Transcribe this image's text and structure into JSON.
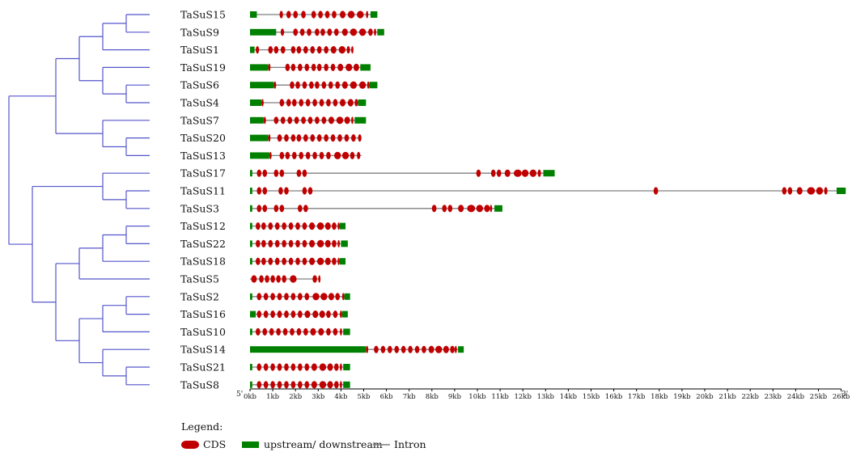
{
  "axis": {
    "start_label": "5'",
    "end_label": "3'",
    "ticks": [
      "0kb",
      "1kb",
      "2kb",
      "3kb",
      "4kb",
      "5kb",
      "6kb",
      "7kb",
      "8kb",
      "9kb",
      "10kb",
      "11kb",
      "12kb",
      "13kb",
      "14kb",
      "15kb",
      "16kb",
      "17kb",
      "18kb",
      "19kb",
      "20kb",
      "21kb",
      "22kb",
      "23kb",
      "24kb",
      "25kb",
      "26kb"
    ]
  },
  "legend": {
    "title": "Legend:",
    "cds_label": "CDS",
    "utr_label": "upstream/ downstream",
    "intron_label": "Intron"
  },
  "colors": {
    "cds": "#c00000",
    "utr": "#008000",
    "intron": "#7f7f7f",
    "tree": "#5555cc"
  },
  "genes": [
    {
      "name": "TaSuS15",
      "len": 5.6,
      "utr": [
        [
          0,
          0.3
        ],
        [
          5.3,
          5.6
        ]
      ],
      "cds": [
        [
          1.3,
          0.15
        ],
        [
          1.6,
          0.2
        ],
        [
          1.9,
          0.2
        ],
        [
          2.25,
          0.2
        ],
        [
          2.7,
          0.2
        ],
        [
          3.0,
          0.2
        ],
        [
          3.3,
          0.2
        ],
        [
          3.6,
          0.2
        ],
        [
          3.95,
          0.25
        ],
        [
          4.3,
          0.3
        ],
        [
          4.7,
          0.3
        ],
        [
          5.1,
          0.1
        ]
      ]
    },
    {
      "name": "TaSuS9",
      "len": 5.9,
      "utr": [
        [
          0,
          1.15
        ],
        [
          5.6,
          5.9
        ]
      ],
      "cds": [
        [
          1.35,
          0.15
        ],
        [
          1.9,
          0.2
        ],
        [
          2.2,
          0.2
        ],
        [
          2.5,
          0.2
        ],
        [
          2.85,
          0.2
        ],
        [
          3.1,
          0.2
        ],
        [
          3.4,
          0.2
        ],
        [
          3.7,
          0.2
        ],
        [
          4.05,
          0.25
        ],
        [
          4.4,
          0.3
        ],
        [
          4.8,
          0.3
        ],
        [
          5.2,
          0.2
        ],
        [
          5.45,
          0.1
        ]
      ]
    },
    {
      "name": "TaSuS1",
      "len": 4.5,
      "utr": [
        [
          0,
          0.2
        ]
      ],
      "cds": [
        [
          0.25,
          0.15
        ],
        [
          0.8,
          0.2
        ],
        [
          1.05,
          0.2
        ],
        [
          1.35,
          0.2
        ],
        [
          1.8,
          0.2
        ],
        [
          2.05,
          0.2
        ],
        [
          2.35,
          0.2
        ],
        [
          2.65,
          0.2
        ],
        [
          2.95,
          0.2
        ],
        [
          3.25,
          0.2
        ],
        [
          3.55,
          0.25
        ],
        [
          3.9,
          0.3
        ],
        [
          4.25,
          0.15
        ],
        [
          4.45,
          0.1
        ]
      ]
    },
    {
      "name": "TaSuS19",
      "len": 5.3,
      "utr": [
        [
          0,
          0.8
        ],
        [
          4.85,
          5.3
        ]
      ],
      "cds": [
        [
          0.8,
          0.1
        ],
        [
          1.55,
          0.2
        ],
        [
          1.8,
          0.2
        ],
        [
          2.1,
          0.2
        ],
        [
          2.4,
          0.2
        ],
        [
          2.7,
          0.2
        ],
        [
          2.95,
          0.2
        ],
        [
          3.25,
          0.2
        ],
        [
          3.55,
          0.2
        ],
        [
          3.85,
          0.25
        ],
        [
          4.2,
          0.3
        ],
        [
          4.55,
          0.25
        ]
      ]
    },
    {
      "name": "TaSuS6",
      "len": 5.6,
      "utr": [
        [
          0,
          1.05
        ],
        [
          5.25,
          5.6
        ]
      ],
      "cds": [
        [
          1.05,
          0.1
        ],
        [
          1.75,
          0.2
        ],
        [
          2.0,
          0.2
        ],
        [
          2.3,
          0.2
        ],
        [
          2.6,
          0.2
        ],
        [
          2.85,
          0.2
        ],
        [
          3.15,
          0.2
        ],
        [
          3.45,
          0.2
        ],
        [
          3.75,
          0.2
        ],
        [
          4.05,
          0.25
        ],
        [
          4.4,
          0.3
        ],
        [
          4.8,
          0.3
        ],
        [
          5.15,
          0.1
        ]
      ]
    },
    {
      "name": "TaSuS4",
      "len": 5.1,
      "utr": [
        [
          0,
          0.5
        ],
        [
          4.75,
          5.1
        ]
      ],
      "cds": [
        [
          0.5,
          0.1
        ],
        [
          1.3,
          0.2
        ],
        [
          1.6,
          0.2
        ],
        [
          1.85,
          0.2
        ],
        [
          2.15,
          0.2
        ],
        [
          2.45,
          0.2
        ],
        [
          2.75,
          0.2
        ],
        [
          3.05,
          0.2
        ],
        [
          3.35,
          0.2
        ],
        [
          3.65,
          0.2
        ],
        [
          3.95,
          0.25
        ],
        [
          4.3,
          0.25
        ],
        [
          4.6,
          0.15
        ]
      ]
    },
    {
      "name": "TaSuS7",
      "len": 5.1,
      "utr": [
        [
          0,
          0.6
        ],
        [
          4.6,
          5.1
        ]
      ],
      "cds": [
        [
          0.6,
          0.1
        ],
        [
          1.05,
          0.2
        ],
        [
          1.35,
          0.2
        ],
        [
          1.65,
          0.2
        ],
        [
          1.95,
          0.2
        ],
        [
          2.25,
          0.2
        ],
        [
          2.55,
          0.2
        ],
        [
          2.85,
          0.2
        ],
        [
          3.15,
          0.2
        ],
        [
          3.45,
          0.25
        ],
        [
          3.8,
          0.3
        ],
        [
          4.15,
          0.25
        ],
        [
          4.45,
          0.1
        ]
      ]
    },
    {
      "name": "TaSuS20",
      "len": 4.9,
      "utr": [
        [
          0,
          0.8
        ]
      ],
      "cds": [
        [
          0.8,
          0.1
        ],
        [
          1.2,
          0.2
        ],
        [
          1.5,
          0.2
        ],
        [
          1.8,
          0.2
        ],
        [
          2.05,
          0.2
        ],
        [
          2.35,
          0.2
        ],
        [
          2.65,
          0.2
        ],
        [
          2.95,
          0.2
        ],
        [
          3.25,
          0.2
        ],
        [
          3.55,
          0.2
        ],
        [
          3.85,
          0.2
        ],
        [
          4.15,
          0.2
        ],
        [
          4.45,
          0.2
        ],
        [
          4.75,
          0.15
        ]
      ]
    },
    {
      "name": "TaSuS13",
      "len": 4.9,
      "utr": [
        [
          0,
          0.85
        ]
      ],
      "cds": [
        [
          0.85,
          0.1
        ],
        [
          1.3,
          0.2
        ],
        [
          1.55,
          0.2
        ],
        [
          1.85,
          0.2
        ],
        [
          2.15,
          0.2
        ],
        [
          2.45,
          0.2
        ],
        [
          2.75,
          0.2
        ],
        [
          3.05,
          0.2
        ],
        [
          3.35,
          0.2
        ],
        [
          3.7,
          0.3
        ],
        [
          4.05,
          0.3
        ],
        [
          4.4,
          0.2
        ],
        [
          4.7,
          0.15
        ]
      ]
    },
    {
      "name": "TaSuS17",
      "len": 13.4,
      "utr": [
        [
          0,
          0.1
        ],
        [
          12.9,
          13.4
        ]
      ],
      "cds": [
        [
          0.3,
          0.2
        ],
        [
          0.55,
          0.2
        ],
        [
          1.05,
          0.2
        ],
        [
          1.3,
          0.2
        ],
        [
          2.05,
          0.2
        ],
        [
          2.3,
          0.2
        ],
        [
          9.95,
          0.2
        ],
        [
          10.6,
          0.2
        ],
        [
          10.85,
          0.2
        ],
        [
          11.2,
          0.25
        ],
        [
          11.6,
          0.35
        ],
        [
          11.95,
          0.3
        ],
        [
          12.3,
          0.3
        ],
        [
          12.65,
          0.15
        ]
      ]
    },
    {
      "name": "TaSuS11",
      "len": 26.2,
      "utr": [
        [
          0,
          0.1
        ],
        [
          25.8,
          26.2
        ]
      ],
      "cds": [
        [
          0.3,
          0.2
        ],
        [
          0.55,
          0.2
        ],
        [
          1.25,
          0.2
        ],
        [
          1.5,
          0.2
        ],
        [
          2.3,
          0.2
        ],
        [
          2.55,
          0.2
        ],
        [
          17.75,
          0.2
        ],
        [
          23.4,
          0.2
        ],
        [
          23.65,
          0.2
        ],
        [
          24.05,
          0.25
        ],
        [
          24.5,
          0.35
        ],
        [
          24.9,
          0.3
        ],
        [
          25.25,
          0.15
        ]
      ]
    },
    {
      "name": "TaSuS3",
      "len": 11.1,
      "utr": [
        [
          0,
          0.1
        ],
        [
          10.75,
          11.1
        ]
      ],
      "cds": [
        [
          0.3,
          0.2
        ],
        [
          0.55,
          0.2
        ],
        [
          1.05,
          0.2
        ],
        [
          1.3,
          0.2
        ],
        [
          2.1,
          0.2
        ],
        [
          2.35,
          0.2
        ],
        [
          8.0,
          0.2
        ],
        [
          8.45,
          0.2
        ],
        [
          8.7,
          0.2
        ],
        [
          9.15,
          0.25
        ],
        [
          9.55,
          0.35
        ],
        [
          9.95,
          0.3
        ],
        [
          10.3,
          0.25
        ],
        [
          10.55,
          0.1
        ]
      ]
    },
    {
      "name": "TaSuS12",
      "len": 4.2,
      "utr": [
        [
          0,
          0.1
        ],
        [
          3.95,
          4.2
        ]
      ],
      "cds": [
        [
          0.25,
          0.2
        ],
        [
          0.5,
          0.2
        ],
        [
          0.8,
          0.2
        ],
        [
          1.1,
          0.2
        ],
        [
          1.4,
          0.2
        ],
        [
          1.7,
          0.2
        ],
        [
          2.0,
          0.2
        ],
        [
          2.3,
          0.2
        ],
        [
          2.6,
          0.25
        ],
        [
          2.95,
          0.3
        ],
        [
          3.3,
          0.25
        ],
        [
          3.6,
          0.2
        ],
        [
          3.85,
          0.1
        ]
      ]
    },
    {
      "name": "TaSuS22",
      "len": 4.3,
      "utr": [
        [
          0,
          0.1
        ],
        [
          4.0,
          4.3
        ]
      ],
      "cds": [
        [
          0.25,
          0.2
        ],
        [
          0.5,
          0.2
        ],
        [
          0.8,
          0.2
        ],
        [
          1.1,
          0.2
        ],
        [
          1.4,
          0.2
        ],
        [
          1.7,
          0.2
        ],
        [
          2.0,
          0.2
        ],
        [
          2.3,
          0.2
        ],
        [
          2.6,
          0.25
        ],
        [
          2.95,
          0.3
        ],
        [
          3.3,
          0.25
        ],
        [
          3.6,
          0.2
        ],
        [
          3.85,
          0.1
        ]
      ]
    },
    {
      "name": "TaSuS18",
      "len": 4.2,
      "utr": [
        [
          0,
          0.1
        ],
        [
          3.95,
          4.2
        ]
      ],
      "cds": [
        [
          0.25,
          0.2
        ],
        [
          0.5,
          0.2
        ],
        [
          0.8,
          0.2
        ],
        [
          1.1,
          0.2
        ],
        [
          1.4,
          0.2
        ],
        [
          1.7,
          0.2
        ],
        [
          2.0,
          0.2
        ],
        [
          2.3,
          0.2
        ],
        [
          2.6,
          0.25
        ],
        [
          2.95,
          0.3
        ],
        [
          3.3,
          0.25
        ],
        [
          3.6,
          0.2
        ],
        [
          3.85,
          0.1
        ]
      ]
    },
    {
      "name": "TaSuS5",
      "len": 3.1,
      "utr": [],
      "cds": [
        [
          0.05,
          0.25
        ],
        [
          0.4,
          0.2
        ],
        [
          0.65,
          0.2
        ],
        [
          0.9,
          0.2
        ],
        [
          1.15,
          0.2
        ],
        [
          1.4,
          0.2
        ],
        [
          1.75,
          0.3
        ],
        [
          2.75,
          0.2
        ],
        [
          3.0,
          0.1
        ]
      ]
    },
    {
      "name": "TaSuS2",
      "len": 4.4,
      "utr": [
        [
          0,
          0.1
        ],
        [
          4.15,
          4.4
        ]
      ],
      "cds": [
        [
          0.3,
          0.2
        ],
        [
          0.6,
          0.2
        ],
        [
          0.9,
          0.2
        ],
        [
          1.2,
          0.2
        ],
        [
          1.5,
          0.2
        ],
        [
          1.8,
          0.2
        ],
        [
          2.1,
          0.2
        ],
        [
          2.4,
          0.2
        ],
        [
          2.75,
          0.3
        ],
        [
          3.1,
          0.3
        ],
        [
          3.45,
          0.25
        ],
        [
          3.75,
          0.2
        ],
        [
          4.05,
          0.1
        ]
      ]
    },
    {
      "name": "TaSuS16",
      "len": 4.3,
      "utr": [
        [
          0,
          0.25
        ],
        [
          4.05,
          4.3
        ]
      ],
      "cds": [
        [
          0.3,
          0.2
        ],
        [
          0.6,
          0.2
        ],
        [
          0.9,
          0.2
        ],
        [
          1.2,
          0.2
        ],
        [
          1.5,
          0.2
        ],
        [
          1.8,
          0.2
        ],
        [
          2.1,
          0.2
        ],
        [
          2.4,
          0.25
        ],
        [
          2.75,
          0.25
        ],
        [
          3.05,
          0.25
        ],
        [
          3.35,
          0.2
        ],
        [
          3.65,
          0.2
        ],
        [
          3.95,
          0.1
        ]
      ]
    },
    {
      "name": "TaSuS10",
      "len": 4.4,
      "utr": [
        [
          0,
          0.1
        ],
        [
          4.1,
          4.4
        ]
      ],
      "cds": [
        [
          0.25,
          0.2
        ],
        [
          0.55,
          0.2
        ],
        [
          0.85,
          0.2
        ],
        [
          1.15,
          0.2
        ],
        [
          1.45,
          0.2
        ],
        [
          1.75,
          0.2
        ],
        [
          2.05,
          0.2
        ],
        [
          2.35,
          0.2
        ],
        [
          2.65,
          0.25
        ],
        [
          3.0,
          0.25
        ],
        [
          3.35,
          0.2
        ],
        [
          3.65,
          0.2
        ],
        [
          3.95,
          0.1
        ]
      ]
    },
    {
      "name": "TaSuS14",
      "len": 9.4,
      "utr": [
        [
          0,
          5.1
        ],
        [
          9.15,
          9.4
        ]
      ],
      "cds": [
        [
          5.1,
          0.1
        ],
        [
          5.45,
          0.2
        ],
        [
          5.75,
          0.2
        ],
        [
          6.05,
          0.2
        ],
        [
          6.35,
          0.2
        ],
        [
          6.65,
          0.2
        ],
        [
          6.95,
          0.2
        ],
        [
          7.25,
          0.2
        ],
        [
          7.55,
          0.2
        ],
        [
          7.85,
          0.25
        ],
        [
          8.15,
          0.3
        ],
        [
          8.5,
          0.25
        ],
        [
          8.8,
          0.2
        ],
        [
          9.0,
          0.1
        ]
      ]
    },
    {
      "name": "TaSuS21",
      "len": 4.4,
      "utr": [
        [
          0,
          0.1
        ],
        [
          4.1,
          4.4
        ]
      ],
      "cds": [
        [
          0.3,
          0.2
        ],
        [
          0.6,
          0.2
        ],
        [
          0.9,
          0.2
        ],
        [
          1.2,
          0.2
        ],
        [
          1.5,
          0.2
        ],
        [
          1.8,
          0.2
        ],
        [
          2.1,
          0.2
        ],
        [
          2.4,
          0.2
        ],
        [
          2.7,
          0.25
        ],
        [
          3.05,
          0.3
        ],
        [
          3.4,
          0.25
        ],
        [
          3.7,
          0.2
        ],
        [
          3.95,
          0.1
        ]
      ]
    },
    {
      "name": "TaSuS8",
      "len": 4.4,
      "utr": [
        [
          0,
          0.1
        ],
        [
          4.1,
          4.4
        ]
      ],
      "cds": [
        [
          0.3,
          0.2
        ],
        [
          0.6,
          0.2
        ],
        [
          0.9,
          0.2
        ],
        [
          1.2,
          0.2
        ],
        [
          1.5,
          0.2
        ],
        [
          1.8,
          0.2
        ],
        [
          2.1,
          0.2
        ],
        [
          2.4,
          0.2
        ],
        [
          2.7,
          0.25
        ],
        [
          3.05,
          0.3
        ],
        [
          3.4,
          0.25
        ],
        [
          3.7,
          0.2
        ],
        [
          3.95,
          0.1
        ]
      ]
    }
  ]
}
